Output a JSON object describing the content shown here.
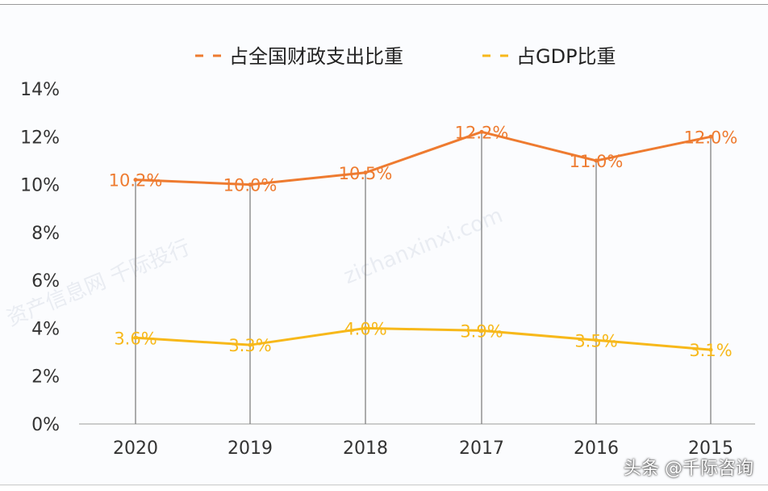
{
  "chart_data": {
    "type": "line",
    "categories": [
      "2020",
      "2019",
      "2018",
      "2017",
      "2016",
      "2015"
    ],
    "series": [
      {
        "name": "占全国财政支出比重",
        "values": [
          10.2,
          10.0,
          10.5,
          12.2,
          11.0,
          12.0
        ],
        "labels": [
          "10.2%",
          "10.0%",
          "10.5%",
          "12.2%",
          "11.0%",
          "12.0%"
        ],
        "color": "#ee7b30"
      },
      {
        "name": "占GDP比重",
        "values": [
          3.6,
          3.3,
          4.0,
          3.9,
          3.5,
          3.1
        ],
        "labels": [
          "3.6%",
          "3.3%",
          "4.0%",
          "3.9%",
          "3.5%",
          "3.1%"
        ],
        "color": "#f7b81a"
      }
    ],
    "ylim": [
      0,
      14
    ],
    "yticks": [
      "0%",
      "2%",
      "4%",
      "6%",
      "8%",
      "10%",
      "12%",
      "14%"
    ],
    "legend": "top",
    "grid": false,
    "drop_lines": true
  },
  "watermark": {
    "attribution": "头条 @千际咨询",
    "site_cn": "资产信息网 千际投行",
    "site_url": "zichanxinxi.com"
  }
}
